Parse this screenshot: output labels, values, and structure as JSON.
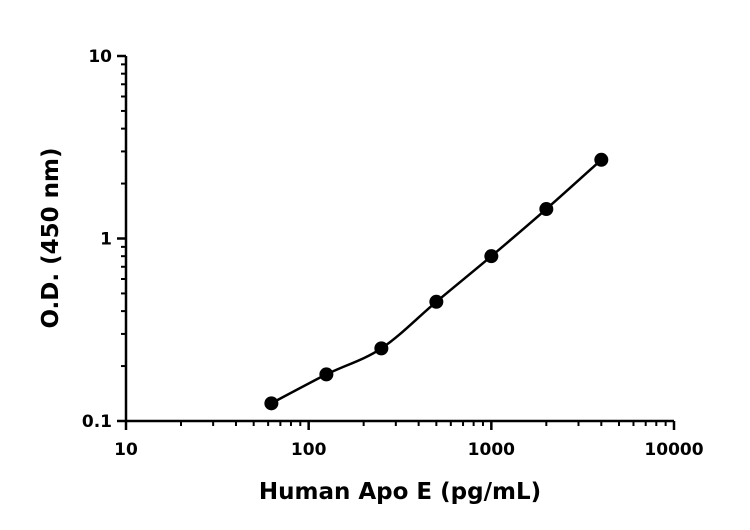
{
  "chart_data": {
    "type": "scatter",
    "title": "",
    "xlabel": "Human Apo E (pg/mL)",
    "ylabel": "O.D. (450 nm)",
    "xscale": "log",
    "yscale": "log",
    "xlim": [
      10,
      10000
    ],
    "ylim": [
      0.1,
      10
    ],
    "x_ticks": [
      "10",
      "100",
      "1000",
      "10000"
    ],
    "y_ticks": [
      "0.1",
      "1",
      "10"
    ],
    "grid": false,
    "legend": "none",
    "colors": {
      "marker": "#000000",
      "line": "#000000",
      "axis": "#000000"
    },
    "series": [
      {
        "fit_line": true,
        "points": [
          {
            "x": 62.5,
            "y": 0.125
          },
          {
            "x": 125,
            "y": 0.18
          },
          {
            "x": 250,
            "y": 0.25
          },
          {
            "x": 500,
            "y": 0.45
          },
          {
            "x": 1000,
            "y": 0.8
          },
          {
            "x": 2000,
            "y": 1.45
          },
          {
            "x": 4000,
            "y": 2.7
          }
        ]
      }
    ]
  }
}
